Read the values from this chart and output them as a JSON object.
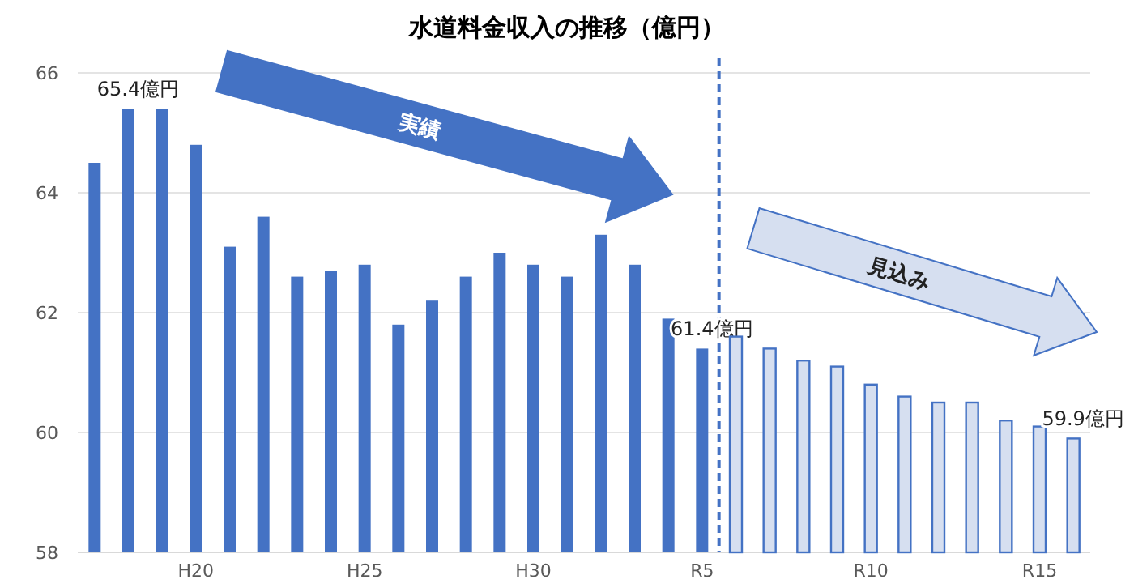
{
  "chart_data": {
    "type": "bar",
    "title": "水道料金収入の推移（億円）",
    "categories": [
      null,
      null,
      null,
      "H20",
      null,
      null,
      null,
      null,
      "H25",
      null,
      null,
      null,
      null,
      "H30",
      null,
      null,
      null,
      null,
      "R5",
      null,
      null,
      null,
      null,
      "R10",
      null,
      null,
      null,
      null,
      "R15",
      null
    ],
    "series": [
      {
        "color": "#4472c4",
        "values": [
          64.5,
          65.4,
          65.4,
          64.8,
          63.1,
          63.6,
          62.6,
          62.7,
          62.8,
          61.8,
          62.2,
          62.6,
          63.0,
          62.8,
          62.6,
          63.3,
          62.8,
          61.9,
          61.4,
          null,
          null,
          null,
          null,
          null,
          null,
          null,
          null,
          null,
          null,
          null
        ],
        "value_labels": [
          null,
          "65.4億円",
          null,
          null,
          null,
          null,
          null,
          null,
          null,
          null,
          null,
          null,
          null,
          null,
          null,
          null,
          null,
          null,
          "61.4億円",
          null,
          null,
          null,
          null,
          null,
          null,
          null,
          null,
          null,
          null,
          null
        ]
      },
      {
        "color": "#d6dff0",
        "values": [
          null,
          null,
          null,
          null,
          null,
          null,
          null,
          null,
          null,
          null,
          null,
          null,
          null,
          null,
          null,
          null,
          null,
          null,
          null,
          61.6,
          61.4,
          61.2,
          61.1,
          60.8,
          60.6,
          60.5,
          60.5,
          60.2,
          60.1,
          59.9
        ],
        "value_labels": [
          null,
          null,
          null,
          null,
          null,
          null,
          null,
          null,
          null,
          null,
          null,
          null,
          null,
          null,
          null,
          null,
          null,
          null,
          null,
          null,
          null,
          null,
          null,
          null,
          null,
          null,
          null,
          null,
          null,
          "59.9億円"
        ]
      }
    ],
    "ylim": [
      58,
      66
    ],
    "yticks": [
      58,
      60,
      62,
      64,
      66
    ],
    "grid": "y",
    "annotations": [
      "実績",
      "見込み"
    ],
    "ref_lines": [
      {
        "axis": "x",
        "value": "R5",
        "label": null,
        "color": "#4472c4",
        "line_style": "dashed"
      }
    ]
  }
}
